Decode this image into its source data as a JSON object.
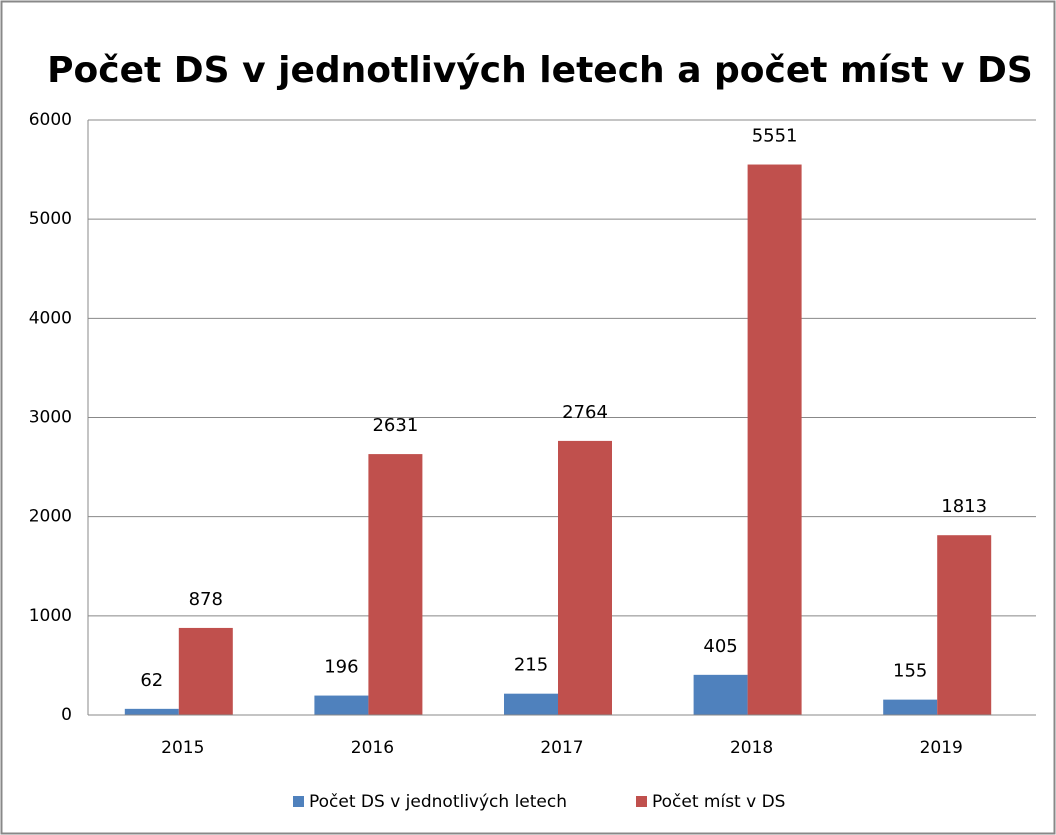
{
  "chart_data": {
    "type": "bar",
    "title": "Počet DS v jednotlivých letech a počet míst v DS",
    "categories": [
      "2015",
      "2016",
      "2017",
      "2018",
      "2019"
    ],
    "series": [
      {
        "name": "Počet DS v jednotlivých letech",
        "color": "#4f81bd",
        "values": [
          62,
          196,
          215,
          405,
          155
        ]
      },
      {
        "name": "Počet míst v DS",
        "color": "#c0504d",
        "values": [
          878,
          2631,
          2764,
          5551,
          1813
        ]
      }
    ],
    "ylim": [
      0,
      6000
    ],
    "yticks": [
      0,
      1000,
      2000,
      3000,
      4000,
      5000,
      6000
    ],
    "grid": true,
    "legend": "bottom"
  }
}
